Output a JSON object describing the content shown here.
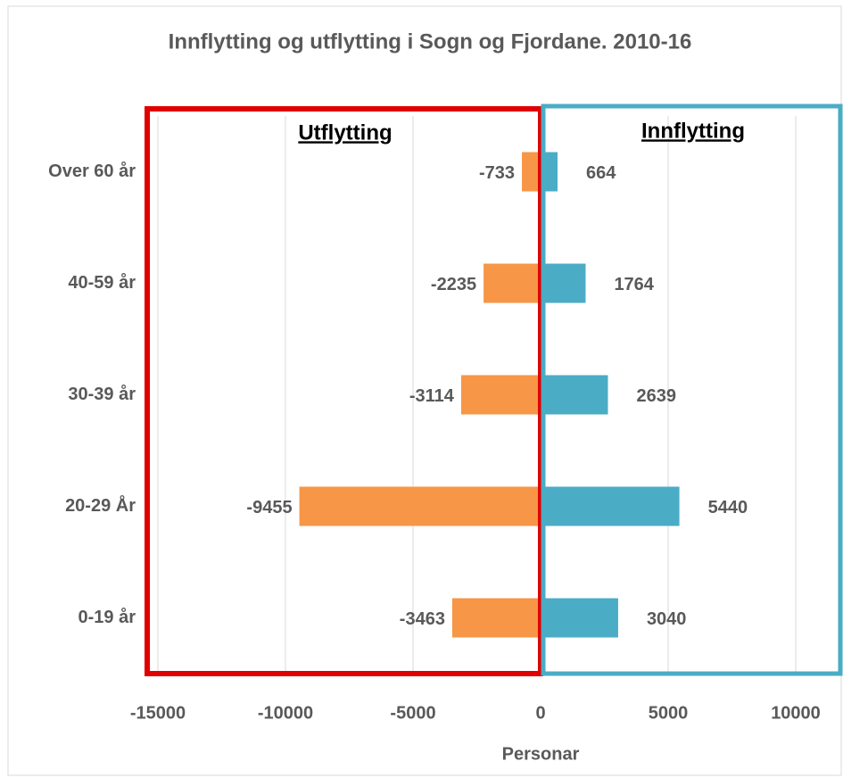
{
  "chart_data": {
    "type": "butterfly-bar",
    "title": "Innflytting og utflytting i Sogn og Fjordane. 2010-16",
    "categories": [
      "Over 60 år",
      "40-59 år",
      "30-39 år",
      "20-29 År",
      "0-19 år"
    ],
    "series": [
      {
        "name": "Utflytting",
        "color": "#f79646",
        "values": [
          -733,
          -2235,
          -3114,
          -9455,
          -3463
        ]
      },
      {
        "name": "Innflytting",
        "color": "#4bacc6",
        "values": [
          664,
          1764,
          2639,
          5440,
          3040
        ]
      }
    ],
    "x_label": "Personar",
    "xlim": [
      -15000,
      10000
    ],
    "xticks": [
      -15000,
      -10000,
      -5000,
      0,
      5000,
      10000
    ],
    "grid": true
  }
}
